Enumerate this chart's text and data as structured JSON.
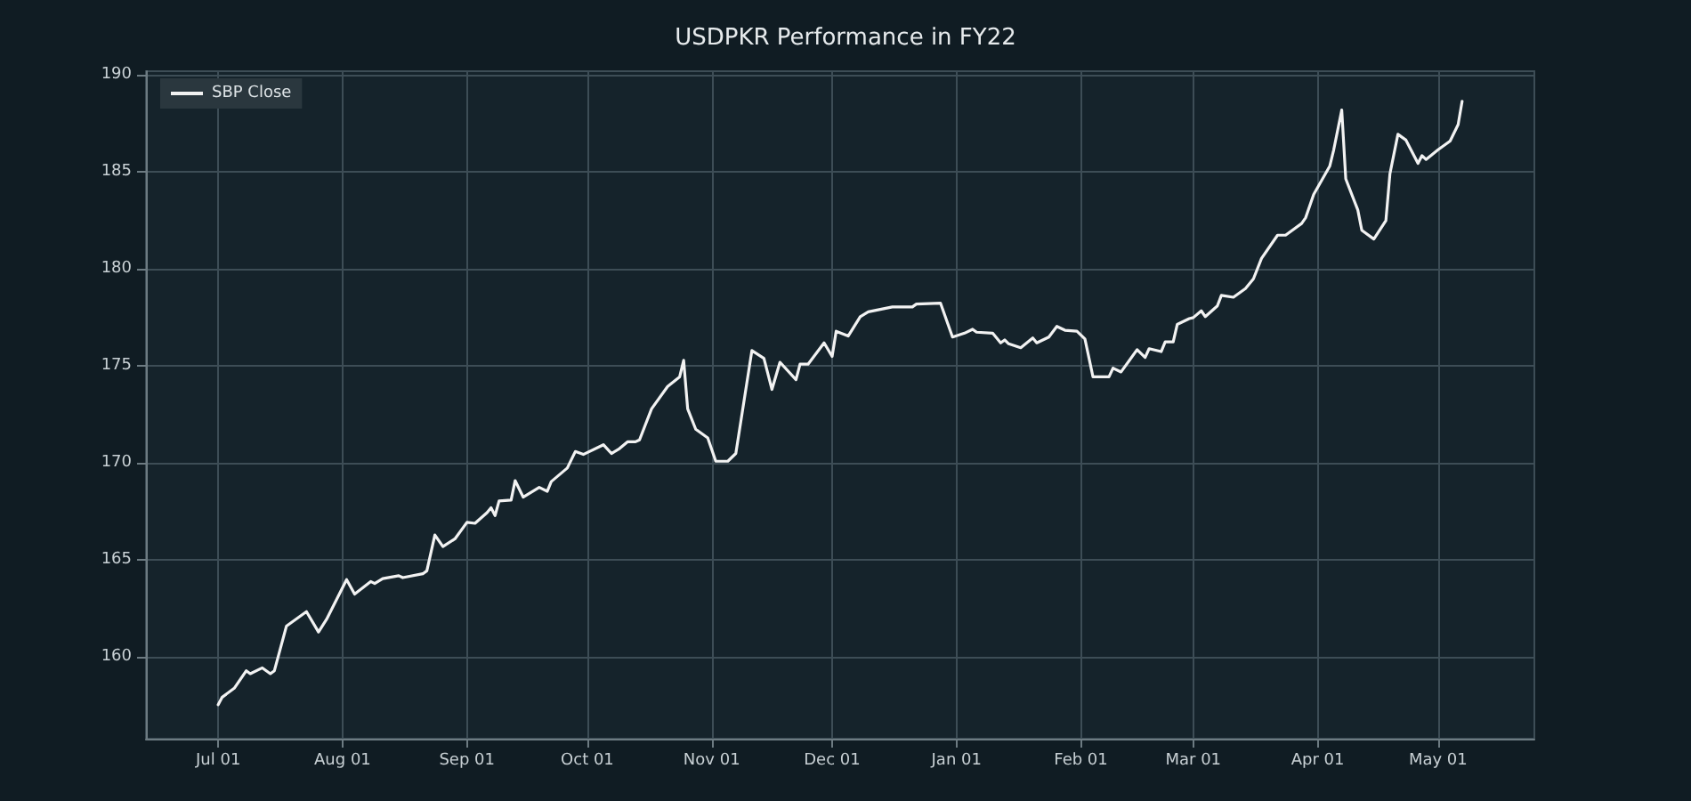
{
  "chart_data": {
    "type": "line",
    "title": "USDPKR Performance in FY22",
    "x": [
      "2021-07-01",
      "2021-07-02",
      "2021-07-05",
      "2021-07-08",
      "2021-07-09",
      "2021-07-12",
      "2021-07-14",
      "2021-07-15",
      "2021-07-18",
      "2021-07-23",
      "2021-07-26",
      "2021-07-28",
      "2021-08-02",
      "2021-08-04",
      "2021-08-08",
      "2021-08-09",
      "2021-08-11",
      "2021-08-15",
      "2021-08-16",
      "2021-08-21",
      "2021-08-22",
      "2021-08-24",
      "2021-08-26",
      "2021-08-29",
      "2021-09-01",
      "2021-09-03",
      "2021-09-06",
      "2021-09-07",
      "2021-09-08",
      "2021-09-09",
      "2021-09-12",
      "2021-09-13",
      "2021-09-15",
      "2021-09-19",
      "2021-09-21",
      "2021-09-22",
      "2021-09-26",
      "2021-09-28",
      "2021-09-30",
      "2021-10-05",
      "2021-10-07",
      "2021-10-09",
      "2021-10-11",
      "2021-10-13",
      "2021-10-14",
      "2021-10-17",
      "2021-10-21",
      "2021-10-24",
      "2021-10-25",
      "2021-10-26",
      "2021-10-28",
      "2021-10-31",
      "2021-11-02",
      "2021-11-05",
      "2021-11-07",
      "2021-11-11",
      "2021-11-14",
      "2021-11-16",
      "2021-11-18",
      "2021-11-22",
      "2021-11-23",
      "2021-11-25",
      "2021-11-29",
      "2021-12-01",
      "2021-12-02",
      "2021-12-05",
      "2021-12-08",
      "2021-12-10",
      "2021-12-16",
      "2021-12-21",
      "2021-12-22",
      "2021-12-28",
      "2021-12-31",
      "2022-01-03",
      "2022-01-05",
      "2022-01-06",
      "2022-01-10",
      "2022-01-12",
      "2022-01-13",
      "2022-01-14",
      "2022-01-17",
      "2022-01-20",
      "2022-01-21",
      "2022-01-24",
      "2022-01-26",
      "2022-01-28",
      "2022-01-31",
      "2022-02-02",
      "2022-02-04",
      "2022-02-08",
      "2022-02-09",
      "2022-02-11",
      "2022-02-15",
      "2022-02-17",
      "2022-02-18",
      "2022-02-21",
      "2022-02-22",
      "2022-02-24",
      "2022-02-25",
      "2022-02-28",
      "2022-03-01",
      "2022-03-03",
      "2022-03-04",
      "2022-03-07",
      "2022-03-08",
      "2022-03-11",
      "2022-03-14",
      "2022-03-16",
      "2022-03-18",
      "2022-03-22",
      "2022-03-24",
      "2022-03-28",
      "2022-03-29",
      "2022-03-31",
      "2022-04-04",
      "2022-04-05",
      "2022-04-07",
      "2022-04-08",
      "2022-04-11",
      "2022-04-12",
      "2022-04-15",
      "2022-04-18",
      "2022-04-19",
      "2022-04-21",
      "2022-04-23",
      "2022-04-26",
      "2022-04-27",
      "2022-04-28",
      "2022-05-01",
      "2022-05-04",
      "2022-05-06",
      "2022-05-07"
    ],
    "series": [
      {
        "name": "SBP Close",
        "color": "#f2f2f2",
        "values": [
          157.55,
          157.94,
          158.4,
          159.3,
          159.15,
          159.45,
          159.15,
          159.3,
          161.6,
          162.35,
          161.3,
          161.95,
          164.0,
          163.25,
          163.9,
          163.8,
          164.05,
          164.2,
          164.1,
          164.3,
          164.45,
          166.3,
          165.7,
          166.1,
          166.95,
          166.9,
          167.45,
          167.7,
          167.3,
          168.05,
          168.1,
          169.1,
          168.25,
          168.75,
          168.55,
          169.05,
          169.75,
          170.6,
          170.45,
          170.95,
          170.5,
          170.75,
          171.1,
          171.1,
          171.2,
          172.8,
          173.95,
          174.45,
          175.3,
          172.8,
          171.75,
          171.3,
          170.1,
          170.1,
          170.5,
          175.8,
          175.4,
          173.8,
          175.2,
          174.3,
          175.1,
          175.1,
          176.2,
          175.5,
          176.8,
          176.55,
          177.55,
          177.8,
          178.05,
          178.05,
          178.2,
          178.25,
          176.5,
          176.7,
          176.9,
          176.75,
          176.7,
          176.2,
          176.35,
          176.15,
          175.95,
          176.45,
          176.2,
          176.5,
          177.05,
          176.85,
          176.8,
          176.4,
          174.45,
          174.45,
          174.9,
          174.7,
          175.85,
          175.45,
          175.9,
          175.75,
          176.25,
          176.25,
          177.15,
          177.45,
          177.5,
          177.85,
          177.55,
          178.1,
          178.65,
          178.55,
          179.0,
          179.5,
          180.55,
          181.75,
          181.75,
          182.35,
          182.65,
          183.85,
          185.3,
          186.15,
          188.2,
          184.65,
          183.05,
          182.0,
          181.55,
          182.5,
          184.9,
          186.95,
          186.65,
          185.45,
          185.85,
          185.65,
          186.15,
          186.6,
          187.45,
          188.65
        ]
      }
    ],
    "xlim": [
      "2021-06-13",
      "2022-05-25"
    ],
    "xticks": [
      {
        "value": "2021-07-01",
        "label": "Jul 01"
      },
      {
        "value": "2021-08-01",
        "label": "Aug 01"
      },
      {
        "value": "2021-09-01",
        "label": "Sep 01"
      },
      {
        "value": "2021-10-01",
        "label": "Oct 01"
      },
      {
        "value": "2021-11-01",
        "label": "Nov 01"
      },
      {
        "value": "2021-12-01",
        "label": "Dec 01"
      },
      {
        "value": "2022-01-01",
        "label": "Jan 01"
      },
      {
        "value": "2022-02-01",
        "label": "Feb 01"
      },
      {
        "value": "2022-03-01",
        "label": "Mar 01"
      },
      {
        "value": "2022-04-01",
        "label": "Apr 01"
      },
      {
        "value": "2022-05-01",
        "label": "May 01"
      }
    ],
    "ylim": [
      155.8,
      190.2
    ],
    "yticks": [
      160,
      165,
      170,
      175,
      180,
      185,
      190
    ],
    "grid": true,
    "legend": "top left",
    "marker": "none",
    "line_style": "solid"
  }
}
